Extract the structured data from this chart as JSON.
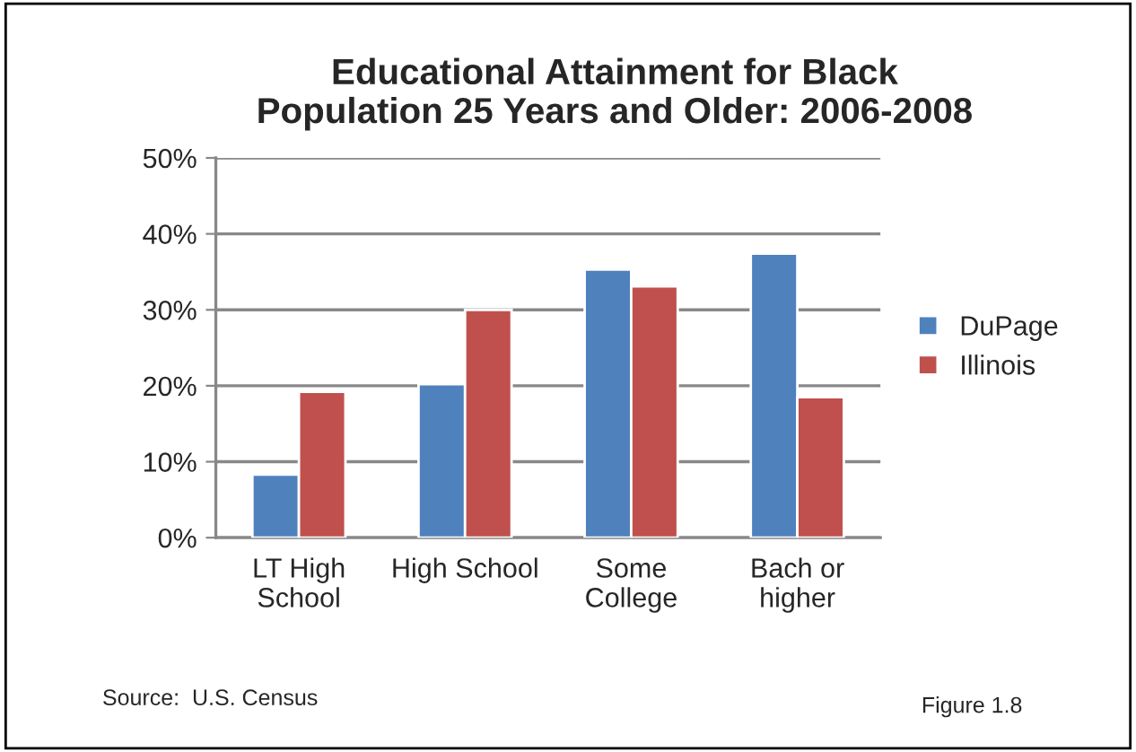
{
  "chart_data": {
    "type": "bar",
    "title": "Educational Attainment for Black\nPopulation 25 Years and Older: 2006-2008",
    "categories": [
      "LT High\nSchool",
      "High School",
      "Some\nCollege",
      "Bach or\nhigher"
    ],
    "series": [
      {
        "name": "DuPage",
        "color": "#4f81bd",
        "values": [
          8.3,
          20.2,
          35.3,
          37.4
        ]
      },
      {
        "name": "Illinois",
        "color": "#c0504d",
        "values": [
          19.2,
          30,
          33.1,
          18.5
        ]
      }
    ],
    "ylim": [
      0,
      50
    ],
    "yticks": [
      {
        "value": 0,
        "label": "0%"
      },
      {
        "value": 10,
        "label": "10%"
      },
      {
        "value": 20,
        "label": "20%"
      },
      {
        "value": 30,
        "label": "30%"
      },
      {
        "value": 40,
        "label": "40%"
      },
      {
        "value": 50,
        "label": "50%"
      }
    ],
    "grid": "y",
    "legend": "right",
    "annotations": [
      "Source:  U.S. Census",
      "Figure 1.8"
    ]
  }
}
